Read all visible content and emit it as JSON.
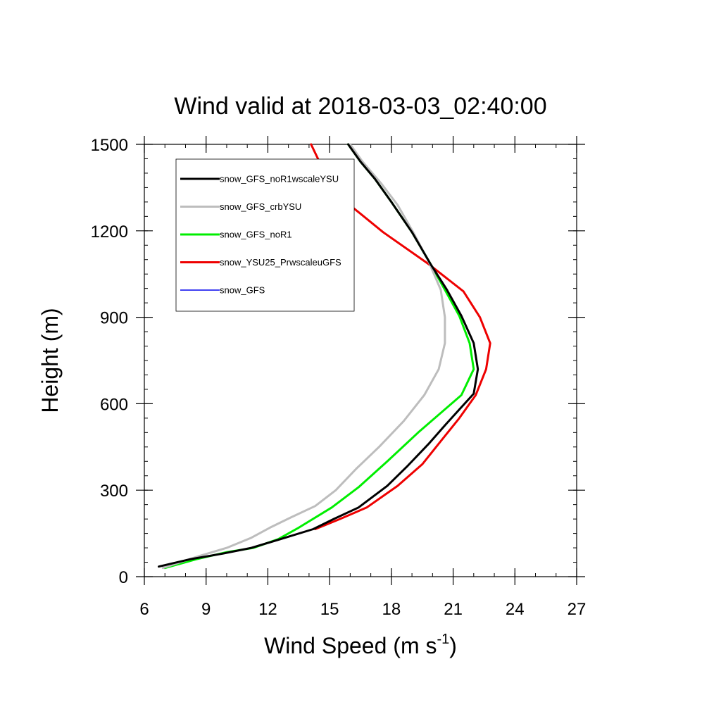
{
  "chart_data": {
    "type": "line",
    "title": "Wind valid at 2018-03-03_02:40:00",
    "xlabel": {
      "main": "Wind Speed (m s",
      "sup": "-1",
      "close": ")"
    },
    "ylabel": "Height (m)",
    "xlim": [
      6,
      27
    ],
    "ylim": [
      0,
      1500
    ],
    "x_ticks": [
      6,
      9,
      12,
      15,
      18,
      21,
      24,
      27
    ],
    "y_ticks": [
      0,
      300,
      600,
      900,
      1200,
      1500
    ],
    "x_minor_step": 1,
    "y_minor_step": 50,
    "grid": false,
    "legend_position": "top-left inside",
    "series": [
      {
        "name": "snow_GFS_noR1wscaleYSU",
        "color": "#000000",
        "points": [
          [
            6.7,
            35
          ],
          [
            8.2,
            60
          ],
          [
            9.8,
            80
          ],
          [
            11.2,
            100
          ],
          [
            12.6,
            130
          ],
          [
            14.2,
            165
          ],
          [
            15.2,
            200
          ],
          [
            16.4,
            240
          ],
          [
            17.8,
            315
          ],
          [
            18.8,
            385
          ],
          [
            19.8,
            460
          ],
          [
            20.6,
            525
          ],
          [
            21.3,
            580
          ],
          [
            22.0,
            635
          ],
          [
            22.2,
            720
          ],
          [
            22.0,
            810
          ],
          [
            21.4,
            905
          ],
          [
            20.7,
            995
          ],
          [
            19.9,
            1085
          ],
          [
            19.0,
            1195
          ],
          [
            18.0,
            1300
          ],
          [
            17.2,
            1380
          ],
          [
            16.5,
            1440
          ],
          [
            15.9,
            1500
          ]
        ]
      },
      {
        "name": "snow_GFS_crbYSU",
        "color": "#bdbdbd",
        "points": [
          [
            6.9,
            30
          ],
          [
            8.6,
            70
          ],
          [
            10.0,
            100
          ],
          [
            11.2,
            135
          ],
          [
            12.1,
            170
          ],
          [
            13.1,
            205
          ],
          [
            14.3,
            245
          ],
          [
            15.3,
            300
          ],
          [
            16.3,
            375
          ],
          [
            17.4,
            450
          ],
          [
            18.6,
            540
          ],
          [
            19.6,
            630
          ],
          [
            20.3,
            720
          ],
          [
            20.6,
            810
          ],
          [
            20.6,
            900
          ],
          [
            20.4,
            995
          ],
          [
            19.8,
            1095
          ],
          [
            19.1,
            1190
          ],
          [
            18.3,
            1290
          ],
          [
            17.5,
            1365
          ],
          [
            16.6,
            1440
          ],
          [
            16.0,
            1500
          ]
        ]
      },
      {
        "name": "snow_GFS_noR1",
        "color": "#00ee00",
        "points": [
          [
            7.0,
            30
          ],
          [
            8.5,
            60
          ],
          [
            10.0,
            85
          ],
          [
            11.3,
            100
          ],
          [
            12.5,
            130
          ],
          [
            13.5,
            170
          ],
          [
            15.1,
            240
          ],
          [
            16.4,
            310
          ],
          [
            17.8,
            400
          ],
          [
            19.3,
            500
          ],
          [
            21.4,
            630
          ],
          [
            22.0,
            720
          ],
          [
            21.8,
            810
          ],
          [
            21.3,
            905
          ],
          [
            20.6,
            995
          ],
          [
            19.9,
            1085
          ],
          [
            19.0,
            1195
          ],
          [
            18.0,
            1300
          ],
          [
            17.2,
            1380
          ],
          [
            16.5,
            1440
          ],
          [
            15.9,
            1500
          ]
        ]
      },
      {
        "name": "snow_YSU25_PrwscaleuGFS",
        "color": "#ee0000",
        "points": [
          [
            14.3,
            165
          ],
          [
            15.5,
            200
          ],
          [
            16.8,
            240
          ],
          [
            18.3,
            315
          ],
          [
            19.5,
            390
          ],
          [
            20.4,
            470
          ],
          [
            21.3,
            550
          ],
          [
            22.1,
            630
          ],
          [
            22.6,
            720
          ],
          [
            22.8,
            810
          ],
          [
            22.3,
            900
          ],
          [
            21.5,
            990
          ],
          [
            19.8,
            1085
          ],
          [
            17.6,
            1195
          ],
          [
            15.8,
            1300
          ],
          [
            14.7,
            1410
          ],
          [
            14.1,
            1500
          ]
        ]
      },
      {
        "name": "snow_GFS",
        "color": "#0000ee",
        "points": [
          [
            6.9,
            30
          ],
          [
            8.6,
            70
          ],
          [
            10.0,
            100
          ],
          [
            11.2,
            135
          ],
          [
            12.1,
            170
          ],
          [
            13.1,
            205
          ],
          [
            14.3,
            245
          ],
          [
            15.3,
            300
          ],
          [
            16.3,
            375
          ],
          [
            17.4,
            450
          ],
          [
            18.6,
            540
          ],
          [
            19.6,
            630
          ],
          [
            20.3,
            720
          ],
          [
            20.6,
            810
          ],
          [
            20.6,
            900
          ],
          [
            20.4,
            995
          ],
          [
            19.8,
            1095
          ],
          [
            19.1,
            1190
          ],
          [
            18.3,
            1290
          ],
          [
            17.5,
            1365
          ],
          [
            16.6,
            1440
          ],
          [
            16.0,
            1500
          ]
        ]
      }
    ]
  }
}
